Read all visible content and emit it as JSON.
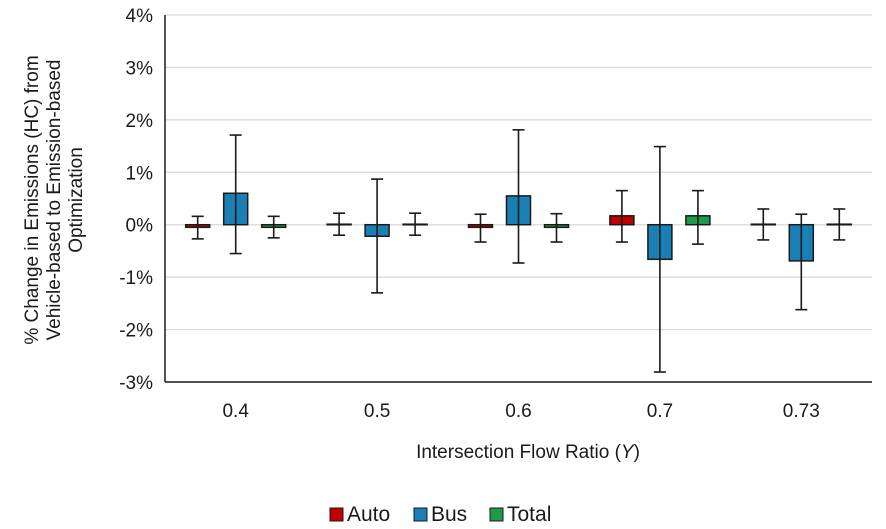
{
  "chart_data": {
    "type": "bar",
    "xlabel": "Intersection Flow Ratio (Y)",
    "xlabel_prefix": "Intersection Flow Ratio (",
    "xlabel_var": "Y",
    "xlabel_suffix": ")",
    "ylabel_lines": [
      "% Change in Emissions (HC) from",
      "Vehicle-based to Emission-based",
      "Optimization"
    ],
    "ylim": [
      -0.03,
      0.04
    ],
    "ytick_values": [
      -0.03,
      -0.02,
      -0.01,
      0,
      0.01,
      0.02,
      0.03,
      0.04
    ],
    "ytick_labels": [
      "-3%",
      "-2%",
      "-1%",
      "0%",
      "1%",
      "2%",
      "3%",
      "4%"
    ],
    "grid": true,
    "legend_position": "bottom",
    "categories": [
      "0.4",
      "0.5",
      "0.6",
      "0.7",
      "0.73"
    ],
    "series": [
      {
        "name": "Auto",
        "color": "#c00000",
        "values": [
          -0.0005,
          0.0001,
          -0.0005,
          0.0017,
          0.0001
        ],
        "err_low": [
          -0.0027,
          -0.002,
          -0.0033,
          -0.0033,
          -0.0029
        ],
        "err_high": [
          0.0016,
          0.0022,
          0.002,
          0.0065,
          0.003
        ]
      },
      {
        "name": "Bus",
        "color": "#1a7fb5",
        "values": [
          0.006,
          -0.0022,
          0.0055,
          -0.0066,
          -0.0069
        ],
        "err_low": [
          -0.0055,
          -0.013,
          -0.0073,
          -0.0281,
          -0.0162
        ],
        "err_high": [
          0.0171,
          0.0087,
          0.0181,
          0.0149,
          0.002
        ]
      },
      {
        "name": "Total",
        "color": "#1f9a4a",
        "values": [
          -0.0005,
          0.0001,
          -0.0005,
          0.0017,
          0.0001
        ],
        "err_low": [
          -0.0025,
          -0.002,
          -0.0033,
          -0.0037,
          -0.0029
        ],
        "err_high": [
          0.0016,
          0.0022,
          0.0021,
          0.0065,
          0.003
        ]
      }
    ]
  }
}
